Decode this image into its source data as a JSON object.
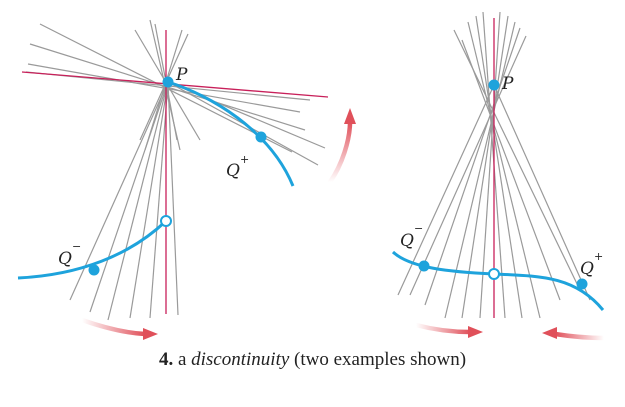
{
  "figure": {
    "left_panel": {
      "point_label": "P",
      "q_minus_label": "Q",
      "q_minus_sup": "−",
      "q_plus_label": "Q",
      "q_plus_sup": "+"
    },
    "right_panel": {
      "point_label": "P",
      "q_minus_label": "Q",
      "q_minus_sup": "−",
      "q_plus_label": "Q",
      "q_plus_sup": "+"
    },
    "colors": {
      "secant": "#9a9a9a",
      "tangent": "#c8205a",
      "curve": "#1ea3dc",
      "arrow": "#e0505a"
    }
  },
  "caption": {
    "number": "4.",
    "prefix": "a",
    "term": "discontinuity",
    "suffix": "(two examples shown)"
  }
}
